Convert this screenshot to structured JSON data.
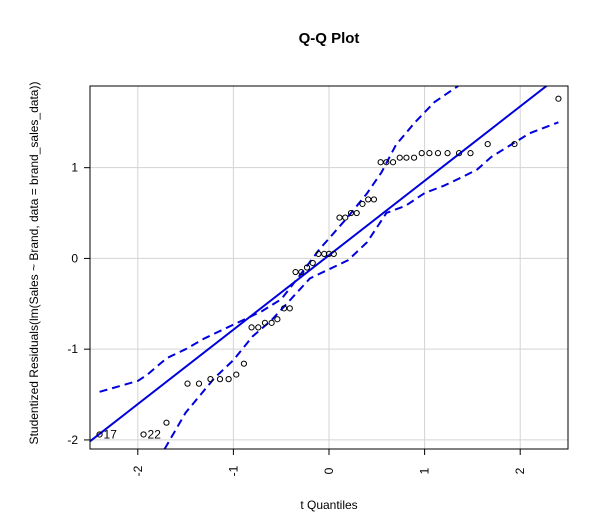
{
  "chart_data": {
    "type": "scatter",
    "title": "Q-Q Plot",
    "xlabel": "t Quantiles",
    "ylabel": "Studentized Residuals(lm(Sales ~ Brand, data = brand_sales_data))",
    "xlim": [
      -2.5,
      2.5
    ],
    "ylim": [
      -2.1,
      1.9
    ],
    "x_ticks": [
      -2,
      -1,
      0,
      1,
      2
    ],
    "y_ticks": [
      -2,
      -1,
      0,
      1
    ],
    "x_tick_labels": [
      "-2",
      "-1",
      "0",
      "1",
      "2"
    ],
    "y_tick_labels": [
      "-2",
      "-1",
      "0",
      "1"
    ],
    "x_tick_rotation": "vertical",
    "grid": true,
    "colors": {
      "points": "#000000",
      "reference": "#0000dd",
      "grid": "#d3d3d3",
      "axes": "#000000"
    },
    "points": [
      {
        "x": -2.4,
        "y": -1.94,
        "label": "17"
      },
      {
        "x": -1.94,
        "y": -1.94,
        "label": "22"
      },
      {
        "x": -1.7,
        "y": -1.81
      },
      {
        "x": -1.48,
        "y": -1.38
      },
      {
        "x": -1.36,
        "y": -1.38
      },
      {
        "x": -1.24,
        "y": -1.33
      },
      {
        "x": -1.14,
        "y": -1.33
      },
      {
        "x": -1.05,
        "y": -1.33
      },
      {
        "x": -0.97,
        "y": -1.28
      },
      {
        "x": -0.89,
        "y": -1.16
      },
      {
        "x": -0.81,
        "y": -0.76
      },
      {
        "x": -0.74,
        "y": -0.76
      },
      {
        "x": -0.67,
        "y": -0.71
      },
      {
        "x": -0.6,
        "y": -0.71
      },
      {
        "x": -0.54,
        "y": -0.67
      },
      {
        "x": -0.47,
        "y": -0.55
      },
      {
        "x": -0.41,
        "y": -0.55
      },
      {
        "x": -0.35,
        "y": -0.15
      },
      {
        "x": -0.29,
        "y": -0.15
      },
      {
        "x": -0.23,
        "y": -0.1
      },
      {
        "x": -0.17,
        "y": -0.05
      },
      {
        "x": -0.11,
        "y": 0.05
      },
      {
        "x": -0.05,
        "y": 0.05
      },
      {
        "x": 0.0,
        "y": 0.05
      },
      {
        "x": 0.05,
        "y": 0.05
      },
      {
        "x": 0.11,
        "y": 0.45
      },
      {
        "x": 0.17,
        "y": 0.45
      },
      {
        "x": 0.23,
        "y": 0.5
      },
      {
        "x": 0.29,
        "y": 0.5
      },
      {
        "x": 0.35,
        "y": 0.6
      },
      {
        "x": 0.41,
        "y": 0.65
      },
      {
        "x": 0.47,
        "y": 0.65
      },
      {
        "x": 0.54,
        "y": 1.06
      },
      {
        "x": 0.6,
        "y": 1.06
      },
      {
        "x": 0.67,
        "y": 1.06
      },
      {
        "x": 0.74,
        "y": 1.11
      },
      {
        "x": 0.81,
        "y": 1.11
      },
      {
        "x": 0.89,
        "y": 1.11
      },
      {
        "x": 0.97,
        "y": 1.16
      },
      {
        "x": 1.05,
        "y": 1.16
      },
      {
        "x": 1.14,
        "y": 1.16
      },
      {
        "x": 1.24,
        "y": 1.16
      },
      {
        "x": 1.36,
        "y": 1.16
      },
      {
        "x": 1.48,
        "y": 1.16
      },
      {
        "x": 1.66,
        "y": 1.26
      },
      {
        "x": 1.94,
        "y": 1.26
      },
      {
        "x": 2.4,
        "y": 1.76
      }
    ],
    "reference_line": {
      "intercept": 0.035,
      "slope": 0.82
    },
    "upper_band": [
      {
        "x": -2.4,
        "y": -1.47
      },
      {
        "x": -2.0,
        "y": -1.35
      },
      {
        "x": -1.9,
        "y": -1.28
      },
      {
        "x": -1.7,
        "y": -1.1
      },
      {
        "x": -1.5,
        "y": -1.0
      },
      {
        "x": -1.3,
        "y": -0.88
      },
      {
        "x": -1.1,
        "y": -0.78
      },
      {
        "x": -0.9,
        "y": -0.68
      },
      {
        "x": -0.7,
        "y": -0.58
      },
      {
        "x": -0.5,
        "y": -0.45
      },
      {
        "x": -0.3,
        "y": -0.18
      },
      {
        "x": -0.1,
        "y": 0.1
      },
      {
        "x": 0.0,
        "y": 0.22
      },
      {
        "x": 0.2,
        "y": 0.46
      },
      {
        "x": 0.4,
        "y": 0.72
      },
      {
        "x": 0.55,
        "y": 0.95
      },
      {
        "x": 0.7,
        "y": 1.25
      },
      {
        "x": 0.9,
        "y": 1.5
      },
      {
        "x": 1.1,
        "y": 1.72
      },
      {
        "x": 1.35,
        "y": 1.9
      }
    ],
    "lower_band": [
      {
        "x": -1.72,
        "y": -2.1
      },
      {
        "x": -1.5,
        "y": -1.7
      },
      {
        "x": -1.2,
        "y": -1.32
      },
      {
        "x": -1.0,
        "y": -1.12
      },
      {
        "x": -0.8,
        "y": -0.86
      },
      {
        "x": -0.6,
        "y": -0.68
      },
      {
        "x": -0.4,
        "y": -0.45
      },
      {
        "x": -0.2,
        "y": -0.22
      },
      {
        "x": 0.0,
        "y": -0.12
      },
      {
        "x": 0.2,
        "y": -0.02
      },
      {
        "x": 0.4,
        "y": 0.18
      },
      {
        "x": 0.6,
        "y": 0.5
      },
      {
        "x": 0.8,
        "y": 0.58
      },
      {
        "x": 1.0,
        "y": 0.72
      },
      {
        "x": 1.2,
        "y": 0.8
      },
      {
        "x": 1.4,
        "y": 0.9
      },
      {
        "x": 1.55,
        "y": 0.98
      },
      {
        "x": 1.7,
        "y": 1.12
      },
      {
        "x": 1.9,
        "y": 1.25
      },
      {
        "x": 2.1,
        "y": 1.38
      },
      {
        "x": 2.4,
        "y": 1.5
      }
    ]
  }
}
